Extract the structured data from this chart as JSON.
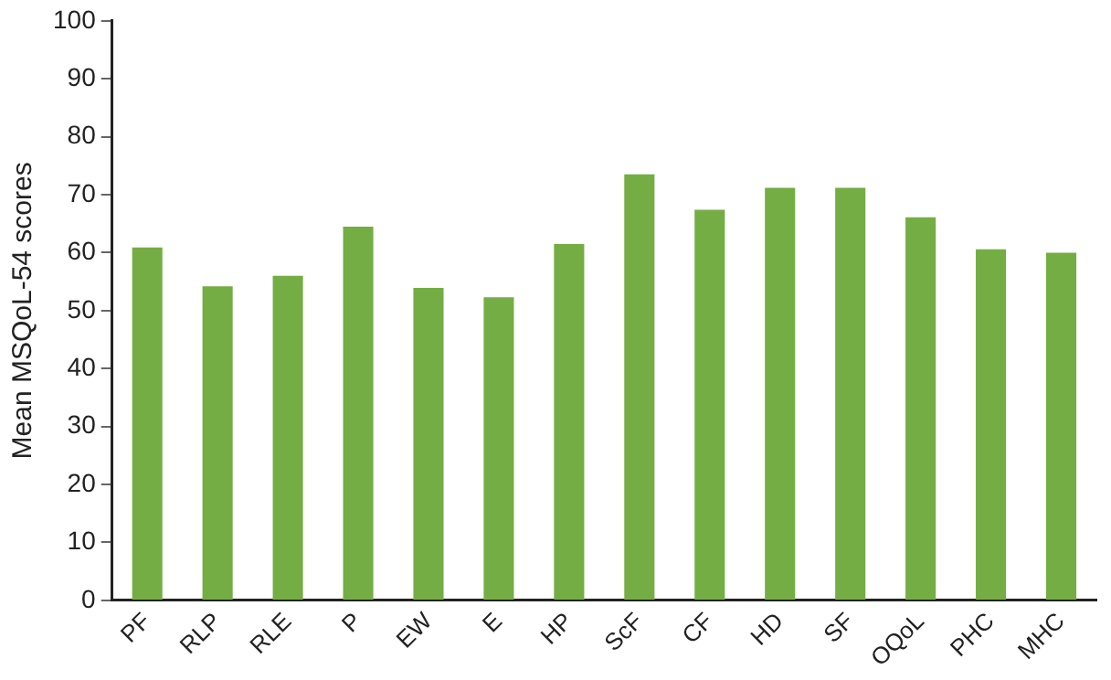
{
  "chart_data": {
    "type": "bar",
    "ylabel": "Mean MSQoL-54 scores",
    "categories": [
      "PF",
      "RLP",
      "RLE",
      "P",
      "EW",
      "E",
      "HP",
      "ScF",
      "CF",
      "HD",
      "SF",
      "OQoL",
      "PHC",
      "MHC"
    ],
    "values": [
      60.9,
      54.2,
      56,
      64.5,
      53.9,
      52.3,
      61.5,
      73.5,
      67.4,
      71.2,
      71.2,
      66.1,
      60.6,
      60
    ],
    "color": "#74ad43",
    "ylim": [
      0,
      100
    ],
    "yticks": [
      0,
      10,
      20,
      30,
      40,
      50,
      60,
      70,
      80,
      90,
      100
    ],
    "grid": false,
    "legend": false
  }
}
